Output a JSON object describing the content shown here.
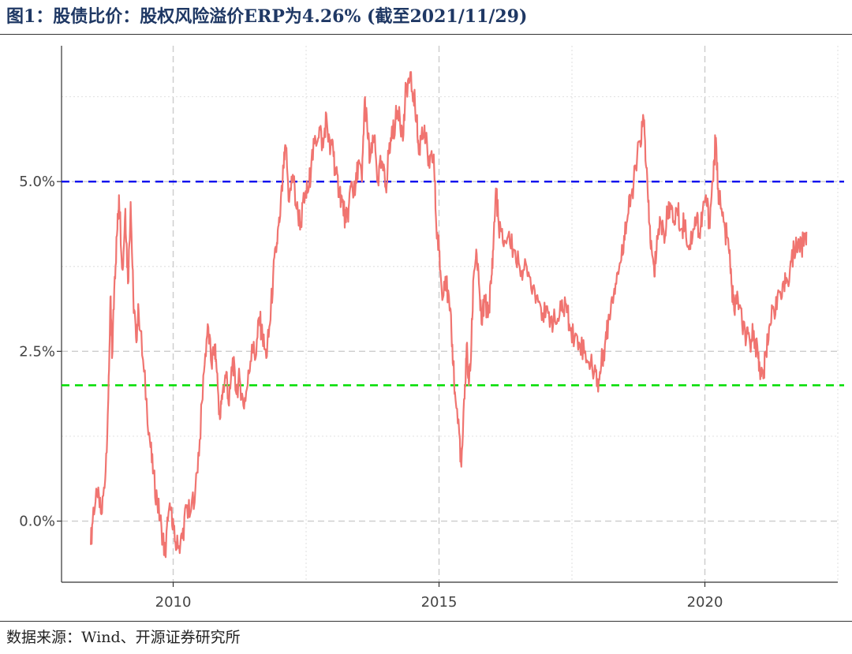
{
  "header": {
    "title": "图1：股债比价：股权风险溢价ERP为4.26% (截至2021/11/29)"
  },
  "footer": {
    "source": "数据来源：Wind、开源证券研究所"
  },
  "chart_data": {
    "type": "line",
    "xlim": [
      2007.9,
      2022.5
    ],
    "ylim": [
      -0.9,
      7.0
    ],
    "x_ticks": [
      2010,
      2015,
      2020
    ],
    "x_tick_labels": [
      "2010",
      "2015",
      "2020"
    ],
    "y_ticks": [
      0.0,
      2.5,
      5.0
    ],
    "y_tick_labels": [
      "0.0%",
      "2.5%",
      "5.0%"
    ],
    "grid": true,
    "reference_lines": [
      {
        "y": 5.0,
        "color": "#0000ee",
        "style": "dashed"
      },
      {
        "y": 2.0,
        "color": "#00dd00",
        "style": "dashed"
      }
    ],
    "series": [
      {
        "color": "#f07470",
        "points": [
          [
            2008.45,
            -0.35
          ],
          [
            2008.5,
            0.2
          ],
          [
            2008.58,
            0.35
          ],
          [
            2008.65,
            0.1
          ],
          [
            2008.72,
            0.6
          ],
          [
            2008.78,
            1.8
          ],
          [
            2008.82,
            3.3
          ],
          [
            2008.85,
            2.4
          ],
          [
            2008.9,
            3.6
          ],
          [
            2008.95,
            4.3
          ],
          [
            2008.98,
            4.8
          ],
          [
            2009.05,
            3.7
          ],
          [
            2009.1,
            4.6
          ],
          [
            2009.15,
            3.5
          ],
          [
            2009.2,
            4.7
          ],
          [
            2009.25,
            3.3
          ],
          [
            2009.3,
            2.7
          ],
          [
            2009.35,
            3.1
          ],
          [
            2009.45,
            2.2
          ],
          [
            2009.55,
            1.3
          ],
          [
            2009.62,
            0.7
          ],
          [
            2009.7,
            0.3
          ],
          [
            2009.78,
            -0.1
          ],
          [
            2009.85,
            -0.5
          ],
          [
            2009.9,
            0.0
          ],
          [
            2009.97,
            0.2
          ],
          [
            2010.03,
            -0.3
          ],
          [
            2010.1,
            -0.4
          ],
          [
            2010.17,
            -0.25
          ],
          [
            2010.25,
            0.2
          ],
          [
            2010.32,
            0.1
          ],
          [
            2010.42,
            0.5
          ],
          [
            2010.5,
            1.2
          ],
          [
            2010.58,
            2.2
          ],
          [
            2010.65,
            2.9
          ],
          [
            2010.72,
            2.3
          ],
          [
            2010.78,
            2.6
          ],
          [
            2010.82,
            2.2
          ],
          [
            2010.88,
            1.5
          ],
          [
            2010.93,
            1.9
          ],
          [
            2011.0,
            2.2
          ],
          [
            2011.05,
            1.7
          ],
          [
            2011.12,
            2.4
          ],
          [
            2011.18,
            1.9
          ],
          [
            2011.25,
            2.1
          ],
          [
            2011.32,
            1.7
          ],
          [
            2011.4,
            2.0
          ],
          [
            2011.48,
            2.6
          ],
          [
            2011.55,
            2.4
          ],
          [
            2011.62,
            3.0
          ],
          [
            2011.68,
            2.7
          ],
          [
            2011.75,
            2.4
          ],
          [
            2011.82,
            2.9
          ],
          [
            2011.88,
            3.6
          ],
          [
            2011.95,
            4.1
          ],
          [
            2012.0,
            4.4
          ],
          [
            2012.08,
            5.2
          ],
          [
            2012.12,
            5.5
          ],
          [
            2012.18,
            4.7
          ],
          [
            2012.25,
            5.1
          ],
          [
            2012.32,
            4.6
          ],
          [
            2012.4,
            4.4
          ],
          [
            2012.48,
            4.8
          ],
          [
            2012.55,
            4.9
          ],
          [
            2012.6,
            5.3
          ],
          [
            2012.68,
            5.6
          ],
          [
            2012.75,
            5.8
          ],
          [
            2012.82,
            5.5
          ],
          [
            2012.88,
            6.0
          ],
          [
            2012.95,
            5.4
          ],
          [
            2013.0,
            5.6
          ],
          [
            2013.05,
            5.1
          ],
          [
            2013.12,
            4.9
          ],
          [
            2013.18,
            4.7
          ],
          [
            2013.25,
            4.4
          ],
          [
            2013.3,
            4.6
          ],
          [
            2013.35,
            5.0
          ],
          [
            2013.42,
            4.8
          ],
          [
            2013.48,
            5.3
          ],
          [
            2013.55,
            5.0
          ],
          [
            2013.6,
            6.2
          ],
          [
            2013.65,
            5.8
          ],
          [
            2013.7,
            5.3
          ],
          [
            2013.78,
            5.6
          ],
          [
            2013.85,
            5.0
          ],
          [
            2013.92,
            5.3
          ],
          [
            2014.0,
            4.9
          ],
          [
            2014.05,
            5.4
          ],
          [
            2014.1,
            5.6
          ],
          [
            2014.18,
            5.9
          ],
          [
            2014.25,
            6.1
          ],
          [
            2014.32,
            5.6
          ],
          [
            2014.38,
            6.4
          ],
          [
            2014.45,
            6.5
          ],
          [
            2014.52,
            6.3
          ],
          [
            2014.58,
            5.9
          ],
          [
            2014.62,
            5.4
          ],
          [
            2014.68,
            5.8
          ],
          [
            2014.75,
            5.6
          ],
          [
            2014.82,
            5.2
          ],
          [
            2014.9,
            5.4
          ],
          [
            2014.95,
            4.3
          ],
          [
            2015.0,
            4.0
          ],
          [
            2015.05,
            3.4
          ],
          [
            2015.12,
            3.6
          ],
          [
            2015.2,
            3.1
          ],
          [
            2015.25,
            2.6
          ],
          [
            2015.3,
            1.9
          ],
          [
            2015.38,
            1.3
          ],
          [
            2015.42,
            0.8
          ],
          [
            2015.48,
            1.8
          ],
          [
            2015.52,
            2.6
          ],
          [
            2015.56,
            2.0
          ],
          [
            2015.6,
            2.4
          ],
          [
            2015.65,
            3.6
          ],
          [
            2015.7,
            4.0
          ],
          [
            2015.75,
            3.5
          ],
          [
            2015.8,
            2.9
          ],
          [
            2015.86,
            3.3
          ],
          [
            2015.92,
            3.0
          ],
          [
            2015.98,
            3.5
          ],
          [
            2016.02,
            4.0
          ],
          [
            2016.07,
            4.9
          ],
          [
            2016.12,
            4.4
          ],
          [
            2016.2,
            4.1
          ],
          [
            2016.3,
            4.2
          ],
          [
            2016.4,
            4.0
          ],
          [
            2016.5,
            3.8
          ],
          [
            2016.6,
            3.7
          ],
          [
            2016.7,
            3.6
          ],
          [
            2016.8,
            3.4
          ],
          [
            2016.9,
            3.2
          ],
          [
            2017.0,
            3.0
          ],
          [
            2017.1,
            3.0
          ],
          [
            2017.2,
            2.9
          ],
          [
            2017.3,
            3.1
          ],
          [
            2017.38,
            3.2
          ],
          [
            2017.45,
            2.9
          ],
          [
            2017.55,
            2.7
          ],
          [
            2017.65,
            2.6
          ],
          [
            2017.75,
            2.5
          ],
          [
            2017.85,
            2.3
          ],
          [
            2017.95,
            2.2
          ],
          [
            2018.0,
            2.0
          ],
          [
            2018.05,
            2.3
          ],
          [
            2018.12,
            2.6
          ],
          [
            2018.18,
            2.9
          ],
          [
            2018.25,
            3.3
          ],
          [
            2018.32,
            3.5
          ],
          [
            2018.4,
            3.8
          ],
          [
            2018.48,
            4.2
          ],
          [
            2018.55,
            4.5
          ],
          [
            2018.62,
            4.8
          ],
          [
            2018.7,
            5.2
          ],
          [
            2018.78,
            5.6
          ],
          [
            2018.85,
            5.9
          ],
          [
            2018.9,
            5.2
          ],
          [
            2018.95,
            4.4
          ],
          [
            2019.0,
            4.0
          ],
          [
            2019.05,
            3.6
          ],
          [
            2019.1,
            4.2
          ],
          [
            2019.18,
            4.4
          ],
          [
            2019.25,
            4.2
          ],
          [
            2019.32,
            4.7
          ],
          [
            2019.4,
            4.4
          ],
          [
            2019.48,
            4.6
          ],
          [
            2019.55,
            4.3
          ],
          [
            2019.62,
            4.4
          ],
          [
            2019.7,
            4.0
          ],
          [
            2019.78,
            4.3
          ],
          [
            2019.85,
            4.5
          ],
          [
            2019.9,
            4.2
          ],
          [
            2019.95,
            4.5
          ],
          [
            2020.02,
            4.8
          ],
          [
            2020.08,
            4.4
          ],
          [
            2020.15,
            5.0
          ],
          [
            2020.2,
            5.6
          ],
          [
            2020.25,
            4.9
          ],
          [
            2020.3,
            4.6
          ],
          [
            2020.38,
            4.3
          ],
          [
            2020.45,
            4.0
          ],
          [
            2020.5,
            3.5
          ],
          [
            2020.55,
            3.1
          ],
          [
            2020.62,
            3.3
          ],
          [
            2020.7,
            2.9
          ],
          [
            2020.78,
            2.7
          ],
          [
            2020.85,
            2.6
          ],
          [
            2020.92,
            2.8
          ],
          [
            2021.0,
            2.4
          ],
          [
            2021.05,
            2.2
          ],
          [
            2021.1,
            2.1
          ],
          [
            2021.15,
            2.5
          ],
          [
            2021.22,
            2.9
          ],
          [
            2021.3,
            3.1
          ],
          [
            2021.38,
            3.4
          ],
          [
            2021.45,
            3.3
          ],
          [
            2021.52,
            3.5
          ],
          [
            2021.6,
            3.7
          ],
          [
            2021.68,
            4.0
          ],
          [
            2021.75,
            4.1
          ],
          [
            2021.82,
            4.0
          ],
          [
            2021.88,
            4.2
          ],
          [
            2021.91,
            4.26
          ]
        ]
      }
    ]
  }
}
